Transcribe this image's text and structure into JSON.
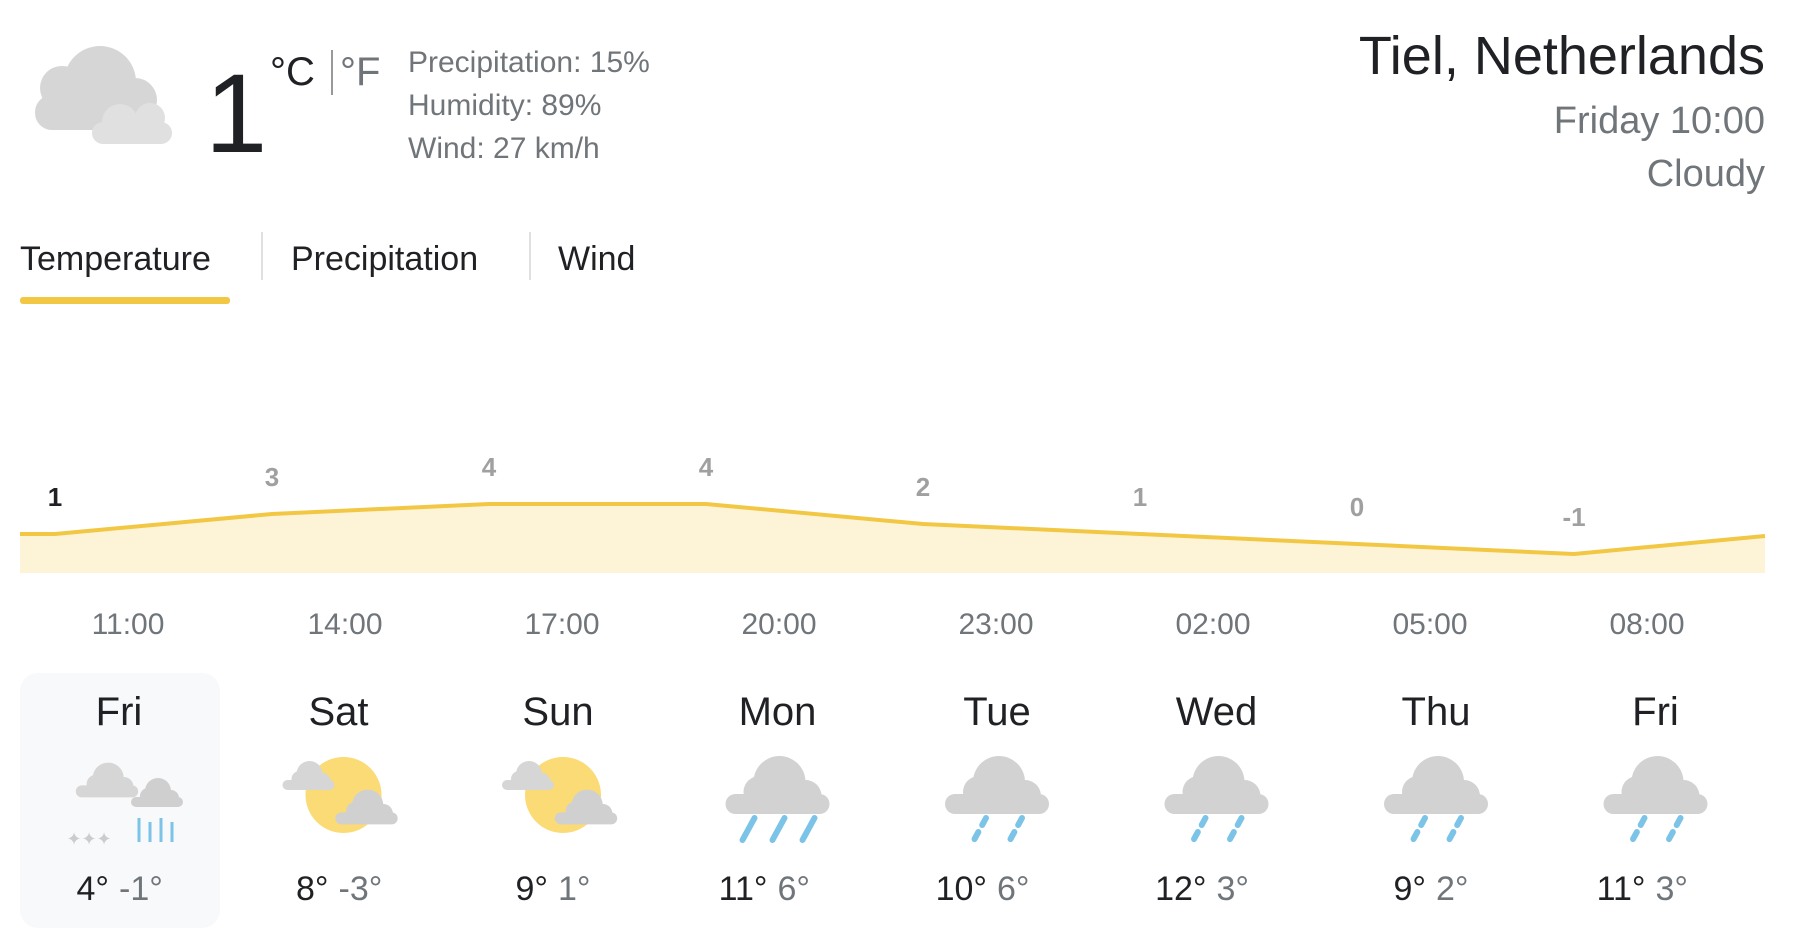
{
  "current": {
    "temperature": "1",
    "unit_c": "°C",
    "unit_f": "°F",
    "precipitation": "Precipitation: 15%",
    "humidity": "Humidity: 89%",
    "wind": "Wind: 27 km/h"
  },
  "location": {
    "place": "Tiel, Netherlands",
    "time": "Friday 10:00",
    "condition": "Cloudy"
  },
  "tabs": [
    "Temperature",
    "Precipitation",
    "Wind"
  ],
  "hourly": {
    "temps": [
      1,
      3,
      4,
      4,
      2,
      1,
      0,
      -1
    ],
    "times": [
      "11:00",
      "14:00",
      "17:00",
      "20:00",
      "23:00",
      "02:00",
      "05:00",
      "08:00"
    ]
  },
  "days": [
    {
      "day": "Fri",
      "high": "4°",
      "low": "-1°"
    },
    {
      "day": "Sat",
      "high": "8°",
      "low": "-3°"
    },
    {
      "day": "Sun",
      "high": "9°",
      "low": "1°"
    },
    {
      "day": "Mon",
      "high": "11°",
      "low": "6°"
    },
    {
      "day": "Tue",
      "high": "10°",
      "low": "6°"
    },
    {
      "day": "Wed",
      "high": "12°",
      "low": "3°"
    },
    {
      "day": "Thu",
      "high": "9°",
      "low": "2°"
    },
    {
      "day": "Fri",
      "high": "11°",
      "low": "3°"
    }
  ]
}
